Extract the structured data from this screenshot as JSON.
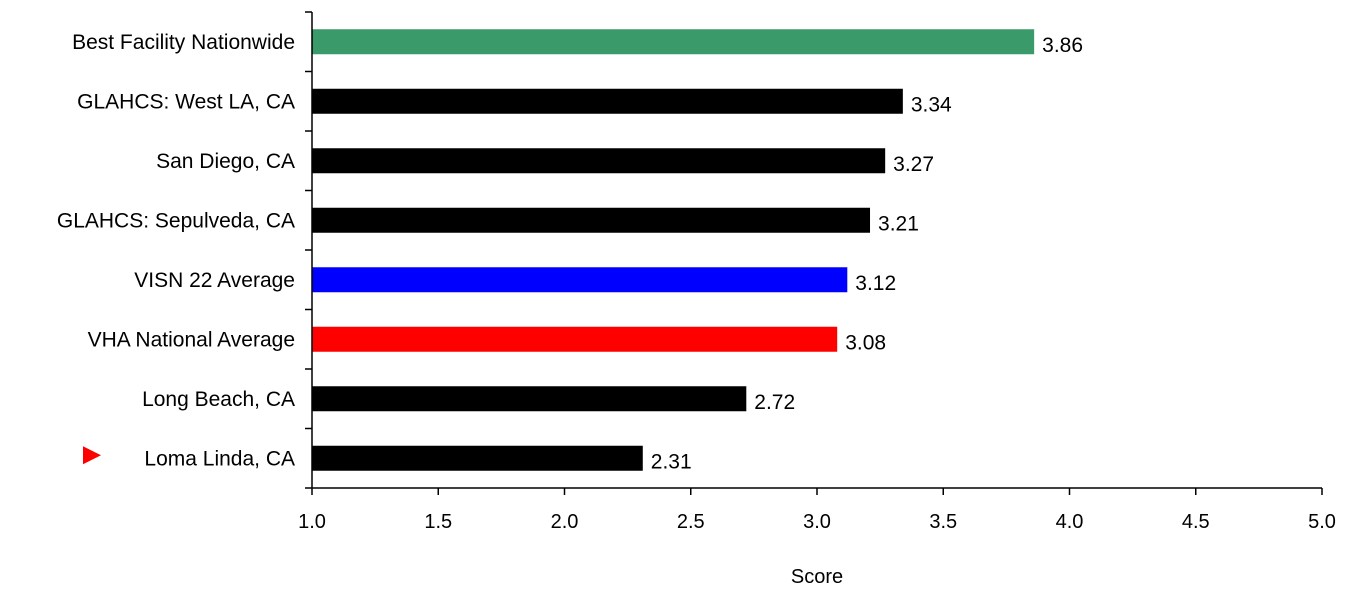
{
  "chart_data": {
    "type": "bar",
    "orientation": "horizontal",
    "title": "",
    "xlabel": "Score",
    "ylabel": "",
    "xlim": [
      1.0,
      5.0
    ],
    "xticks": [
      "1.0",
      "1.5",
      "2.0",
      "2.5",
      "3.0",
      "3.5",
      "4.0",
      "4.5",
      "5.0"
    ],
    "grid": false,
    "legend": "none",
    "categories": [
      "Best Facility Nationwide",
      "GLAHCS: West LA, CA",
      "San Diego, CA",
      "GLAHCS: Sepulveda, CA",
      "VISN 22 Average",
      "VHA National Average",
      "Long Beach, CA",
      "Loma Linda, CA"
    ],
    "values": [
      3.86,
      3.34,
      3.27,
      3.21,
      3.12,
      3.08,
      2.72,
      2.31
    ],
    "value_labels": [
      "3.86",
      "3.34",
      "3.27",
      "3.21",
      "3.12",
      "3.08",
      "2.72",
      "2.31"
    ],
    "bar_colors": [
      "#3a9a6a",
      "#000000",
      "#000000",
      "#000000",
      "#0000ff",
      "#ff0000",
      "#000000",
      "#000000"
    ],
    "highlight_marker": {
      "category": "Loma Linda, CA",
      "shape": "triangle-right",
      "color": "#ff0000"
    }
  }
}
